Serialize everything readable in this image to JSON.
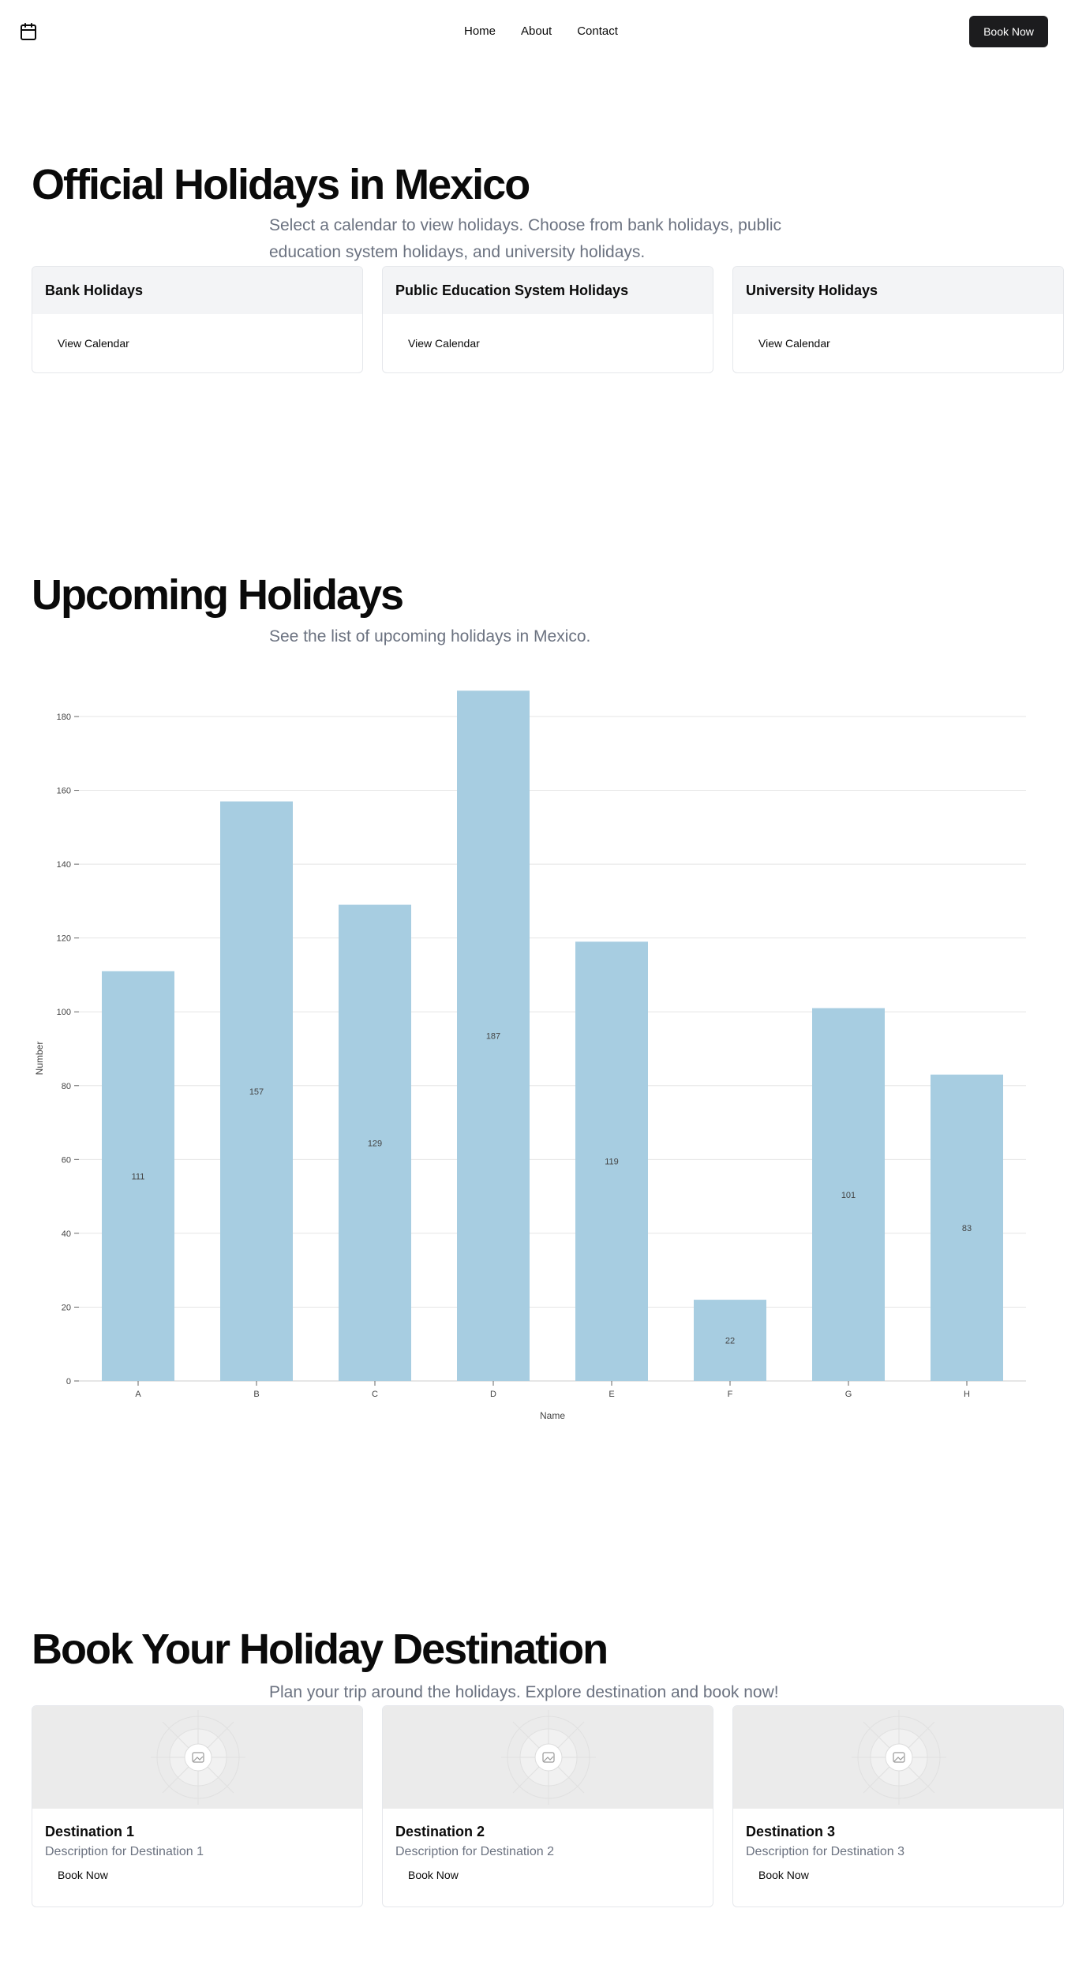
{
  "nav": {
    "logo_icon": "calendar-icon",
    "links": [
      "Home",
      "About",
      "Contact"
    ],
    "cta": "Book Now"
  },
  "official": {
    "title": "Official Holidays in Mexico",
    "subtitle": "Select a calendar to view holidays. Choose from bank holidays, public education system holidays, and university holidays.",
    "cards": [
      {
        "title": "Bank Holidays",
        "action": "View Calendar"
      },
      {
        "title": "Public Education System Holidays",
        "action": "View Calendar"
      },
      {
        "title": "University Holidays",
        "action": "View Calendar"
      }
    ]
  },
  "upcoming": {
    "title": "Upcoming Holidays",
    "subtitle": "See the list of upcoming holidays in Mexico."
  },
  "chart_data": {
    "type": "bar",
    "categories": [
      "A",
      "B",
      "C",
      "D",
      "E",
      "F",
      "G",
      "H"
    ],
    "values": [
      111,
      157,
      129,
      187,
      119,
      22,
      101,
      83
    ],
    "xlabel": "Name",
    "ylabel": "Number",
    "ylim": [
      0,
      180
    ],
    "yticks": [
      0,
      20,
      40,
      60,
      80,
      100,
      120,
      140,
      160,
      180
    ],
    "grid": true,
    "bar_color": "#a7cde1"
  },
  "book": {
    "title": "Book Your Holiday Destination",
    "subtitle": "Plan your trip around the holidays. Explore destination and book now!",
    "destinations": [
      {
        "title": "Destination 1",
        "description": "Description for Destination 1",
        "action": "Book Now",
        "image_icon": "image-placeholder-icon"
      },
      {
        "title": "Destination 2",
        "description": "Description for Destination 2",
        "action": "Book Now",
        "image_icon": "image-placeholder-icon"
      },
      {
        "title": "Destination 3",
        "description": "Description for Destination 3",
        "action": "Book Now",
        "image_icon": "image-placeholder-icon"
      }
    ]
  }
}
